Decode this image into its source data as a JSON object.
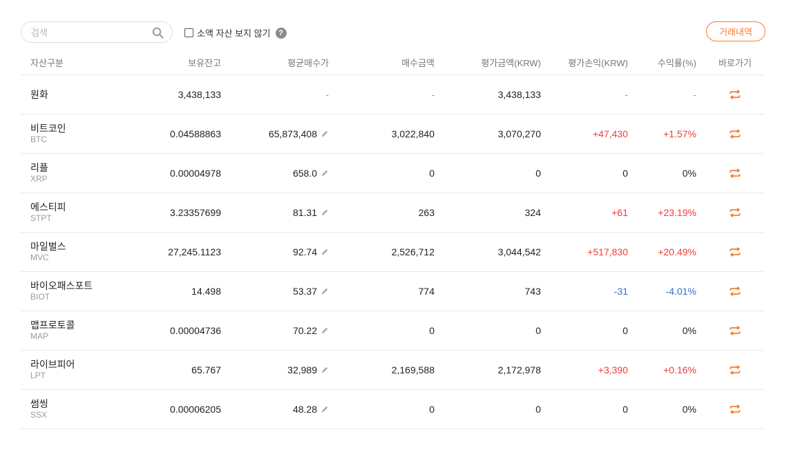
{
  "search": {
    "placeholder": "검색",
    "value": ""
  },
  "hide_small": {
    "label": "소액 자산 보지 않기",
    "help_glyph": "?"
  },
  "history_button": "거래내역",
  "columns": {
    "name": "자산구분",
    "balance": "보유잔고",
    "avg_price": "평균매수가",
    "buy_amount": "매수금액",
    "eval_amount": "평가금액(KRW)",
    "profit": "평가손익(KRW)",
    "rate": "수익률(%)",
    "go": "바로가기"
  },
  "rows": [
    {
      "name": "원화",
      "symbol": "",
      "balance": "3,438,133",
      "avg_price": "-",
      "buy_amount": "-",
      "eval_amount": "3,438,133",
      "profit": "-",
      "rate": "-",
      "trend": "none"
    },
    {
      "name": "비트코인",
      "symbol": "BTC",
      "balance": "0.04588863",
      "avg_price": "65,873,408",
      "buy_amount": "3,022,840",
      "eval_amount": "3,070,270",
      "profit": "+47,430",
      "rate": "+1.57%",
      "trend": "up"
    },
    {
      "name": "리플",
      "symbol": "XRP",
      "balance": "0.00004978",
      "avg_price": "658.0",
      "buy_amount": "0",
      "eval_amount": "0",
      "profit": "0",
      "rate": "0%",
      "trend": "flat"
    },
    {
      "name": "에스티피",
      "symbol": "STPT",
      "balance": "3.23357699",
      "avg_price": "81.31",
      "buy_amount": "263",
      "eval_amount": "324",
      "profit": "+61",
      "rate": "+23.19%",
      "trend": "up"
    },
    {
      "name": "마일벌스",
      "symbol": "MVC",
      "balance": "27,245.1123",
      "avg_price": "92.74",
      "buy_amount": "2,526,712",
      "eval_amount": "3,044,542",
      "profit": "+517,830",
      "rate": "+20.49%",
      "trend": "up"
    },
    {
      "name": "바이오패스포트",
      "symbol": "BIOT",
      "balance": "14.498",
      "avg_price": "53.37",
      "buy_amount": "774",
      "eval_amount": "743",
      "profit": "-31",
      "rate": "-4.01%",
      "trend": "down"
    },
    {
      "name": "맵프로토콜",
      "symbol": "MAP",
      "balance": "0.00004736",
      "avg_price": "70.22",
      "buy_amount": "0",
      "eval_amount": "0",
      "profit": "0",
      "rate": "0%",
      "trend": "flat"
    },
    {
      "name": "라이브피어",
      "symbol": "LPT",
      "balance": "65.767",
      "avg_price": "32,989",
      "buy_amount": "2,169,588",
      "eval_amount": "2,172,978",
      "profit": "+3,390",
      "rate": "+0.16%",
      "trend": "up"
    },
    {
      "name": "썸씽",
      "symbol": "SSX",
      "balance": "0.00006205",
      "avg_price": "48.28",
      "buy_amount": "0",
      "eval_amount": "0",
      "profit": "0",
      "rate": "0%",
      "trend": "flat"
    }
  ],
  "colors": {
    "accent": "#f47e31",
    "up": "#ef3b3b",
    "down": "#2f6fd8"
  },
  "icons": {
    "search": "search-icon",
    "edit": "pencil-icon",
    "go": "exchange-arrows-icon"
  }
}
